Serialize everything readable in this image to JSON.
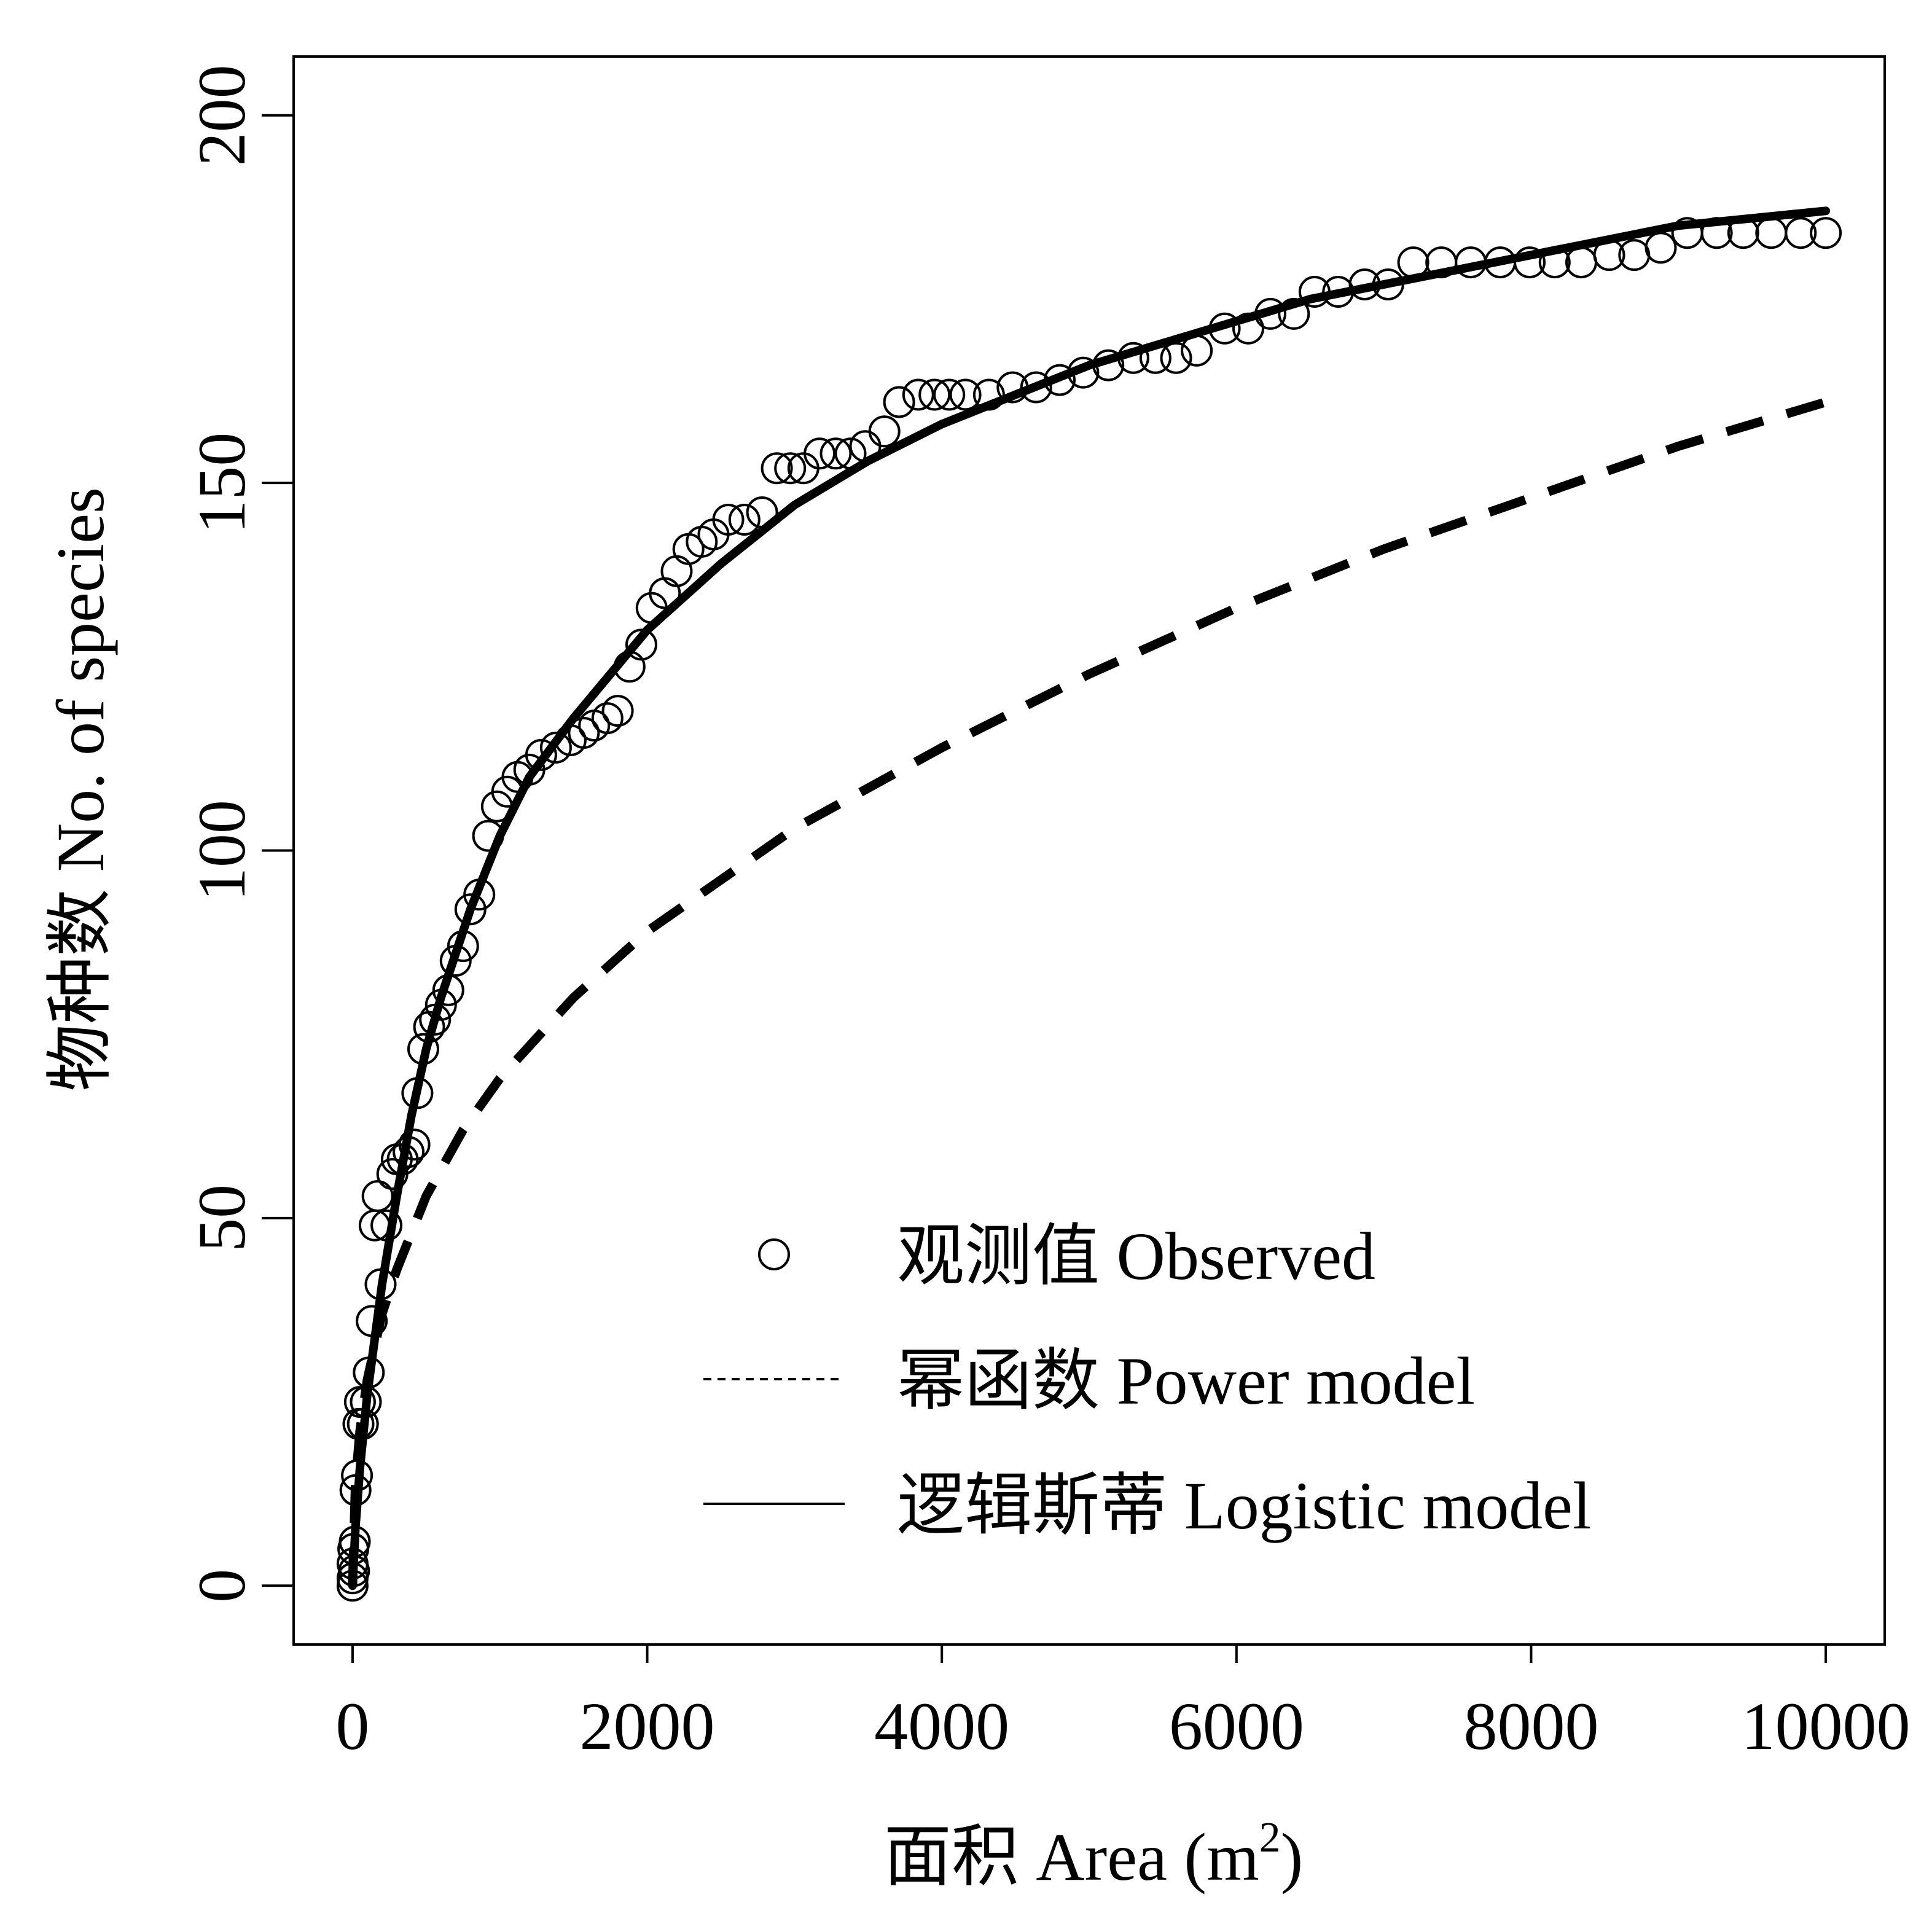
{
  "chart_data": {
    "type": "scatter",
    "title": "",
    "xlabel": "面积 Area (m",
    "xlabel_sup": "2",
    "xlabel_tail": ")",
    "ylabel": "物种数 No. of species",
    "xlim": [
      -400,
      10400
    ],
    "ylim": [
      -8,
      208
    ],
    "x_ticks": [
      0,
      2000,
      4000,
      6000,
      8000,
      10000
    ],
    "x_tick_labels": [
      "0",
      "2000",
      "4000",
      "6000",
      "8000",
      "10000"
    ],
    "y_ticks": [
      0,
      50,
      100,
      150,
      200
    ],
    "y_tick_labels": [
      "0",
      "50",
      "100",
      "150",
      "200"
    ],
    "grid": false,
    "legend_position": "bottom-right",
    "series": [
      {
        "name": "观测值 Observed",
        "kind": "points",
        "marker": "open-circle",
        "color": "#000000",
        "points": [
          [
            0,
            0
          ],
          [
            0,
            1
          ],
          [
            0,
            3
          ],
          [
            5,
            5
          ],
          [
            10,
            2
          ],
          [
            15,
            6
          ],
          [
            20,
            13
          ],
          [
            30,
            15
          ],
          [
            40,
            22
          ],
          [
            50,
            25
          ],
          [
            70,
            22
          ],
          [
            90,
            25
          ],
          [
            110,
            29
          ],
          [
            130,
            36
          ],
          [
            150,
            49
          ],
          [
            170,
            53
          ],
          [
            190,
            41
          ],
          [
            230,
            49
          ],
          [
            270,
            56
          ],
          [
            300,
            58
          ],
          [
            340,
            58
          ],
          [
            380,
            59
          ],
          [
            420,
            60
          ],
          [
            440,
            67
          ],
          [
            480,
            73
          ],
          [
            520,
            76
          ],
          [
            560,
            77
          ],
          [
            600,
            79
          ],
          [
            650,
            81
          ],
          [
            700,
            85
          ],
          [
            750,
            87
          ],
          [
            800,
            92
          ],
          [
            860,
            94
          ],
          [
            920,
            102
          ],
          [
            980,
            106
          ],
          [
            1050,
            108
          ],
          [
            1120,
            110
          ],
          [
            1200,
            111
          ],
          [
            1280,
            113
          ],
          [
            1380,
            114
          ],
          [
            1480,
            115
          ],
          [
            1570,
            116
          ],
          [
            1640,
            117
          ],
          [
            1730,
            118
          ],
          [
            1800,
            119
          ],
          [
            1880,
            125
          ],
          [
            1960,
            128
          ],
          [
            2030,
            133
          ],
          [
            2120,
            135
          ],
          [
            2200,
            138
          ],
          [
            2280,
            141
          ],
          [
            2370,
            142
          ],
          [
            2450,
            143
          ],
          [
            2550,
            145
          ],
          [
            2660,
            145
          ],
          [
            2780,
            146
          ],
          [
            2880,
            152
          ],
          [
            2970,
            152
          ],
          [
            3060,
            152
          ],
          [
            3170,
            154
          ],
          [
            3280,
            154
          ],
          [
            3380,
            154
          ],
          [
            3480,
            155
          ],
          [
            3610,
            157
          ],
          [
            3710,
            161
          ],
          [
            3840,
            162
          ],
          [
            3950,
            162
          ],
          [
            4050,
            162
          ],
          [
            4160,
            162
          ],
          [
            4320,
            162
          ],
          [
            4480,
            163
          ],
          [
            4640,
            163
          ],
          [
            4800,
            164
          ],
          [
            4960,
            165
          ],
          [
            5130,
            166
          ],
          [
            5300,
            167
          ],
          [
            5450,
            167
          ],
          [
            5590,
            167
          ],
          [
            5730,
            168
          ],
          [
            5920,
            171
          ],
          [
            6080,
            171
          ],
          [
            6230,
            173
          ],
          [
            6390,
            173
          ],
          [
            6530,
            176
          ],
          [
            6690,
            176
          ],
          [
            6870,
            177
          ],
          [
            7030,
            177
          ],
          [
            7200,
            180
          ],
          [
            7390,
            180
          ],
          [
            7590,
            180
          ],
          [
            7790,
            180
          ],
          [
            7990,
            180
          ],
          [
            8160,
            180
          ],
          [
            8340,
            180
          ],
          [
            8530,
            181
          ],
          [
            8700,
            181
          ],
          [
            8880,
            182
          ],
          [
            9060,
            184
          ],
          [
            9260,
            184
          ],
          [
            9440,
            184
          ],
          [
            9630,
            184
          ],
          [
            9830,
            184
          ],
          [
            10000,
            184
          ]
        ]
      },
      {
        "name": "幂函数 Power model",
        "kind": "line",
        "line_style": "dashed",
        "color": "#000000",
        "points": [
          [
            0,
            0
          ],
          [
            20,
            14
          ],
          [
            50,
            21
          ],
          [
            100,
            28
          ],
          [
            200,
            37
          ],
          [
            300,
            43
          ],
          [
            500,
            53
          ],
          [
            750,
            62
          ],
          [
            1000,
            69
          ],
          [
            1500,
            80
          ],
          [
            2000,
            89
          ],
          [
            3000,
            103
          ],
          [
            4000,
            114
          ],
          [
            5000,
            124
          ],
          [
            6000,
            133
          ],
          [
            7000,
            141
          ],
          [
            8000,
            148
          ],
          [
            9000,
            155
          ],
          [
            10000,
            161
          ]
        ]
      },
      {
        "name": "逻辑斯蒂 Logistic model",
        "kind": "line",
        "line_style": "solid",
        "color": "#000000",
        "points": [
          [
            0,
            0
          ],
          [
            20,
            8
          ],
          [
            50,
            16
          ],
          [
            100,
            26
          ],
          [
            200,
            41
          ],
          [
            300,
            53
          ],
          [
            400,
            64
          ],
          [
            500,
            73
          ],
          [
            600,
            80
          ],
          [
            800,
            92
          ],
          [
            1000,
            102
          ],
          [
            1200,
            110
          ],
          [
            1500,
            118
          ],
          [
            2000,
            130
          ],
          [
            2500,
            139
          ],
          [
            3000,
            147
          ],
          [
            3500,
            153
          ],
          [
            4000,
            158
          ],
          [
            4500,
            162
          ],
          [
            5000,
            166
          ],
          [
            5500,
            169
          ],
          [
            6000,
            172
          ],
          [
            6500,
            175
          ],
          [
            7000,
            177
          ],
          [
            7500,
            179
          ],
          [
            8000,
            181
          ],
          [
            8500,
            183
          ],
          [
            9000,
            185
          ],
          [
            9500,
            186
          ],
          [
            10000,
            187
          ]
        ]
      }
    ]
  }
}
